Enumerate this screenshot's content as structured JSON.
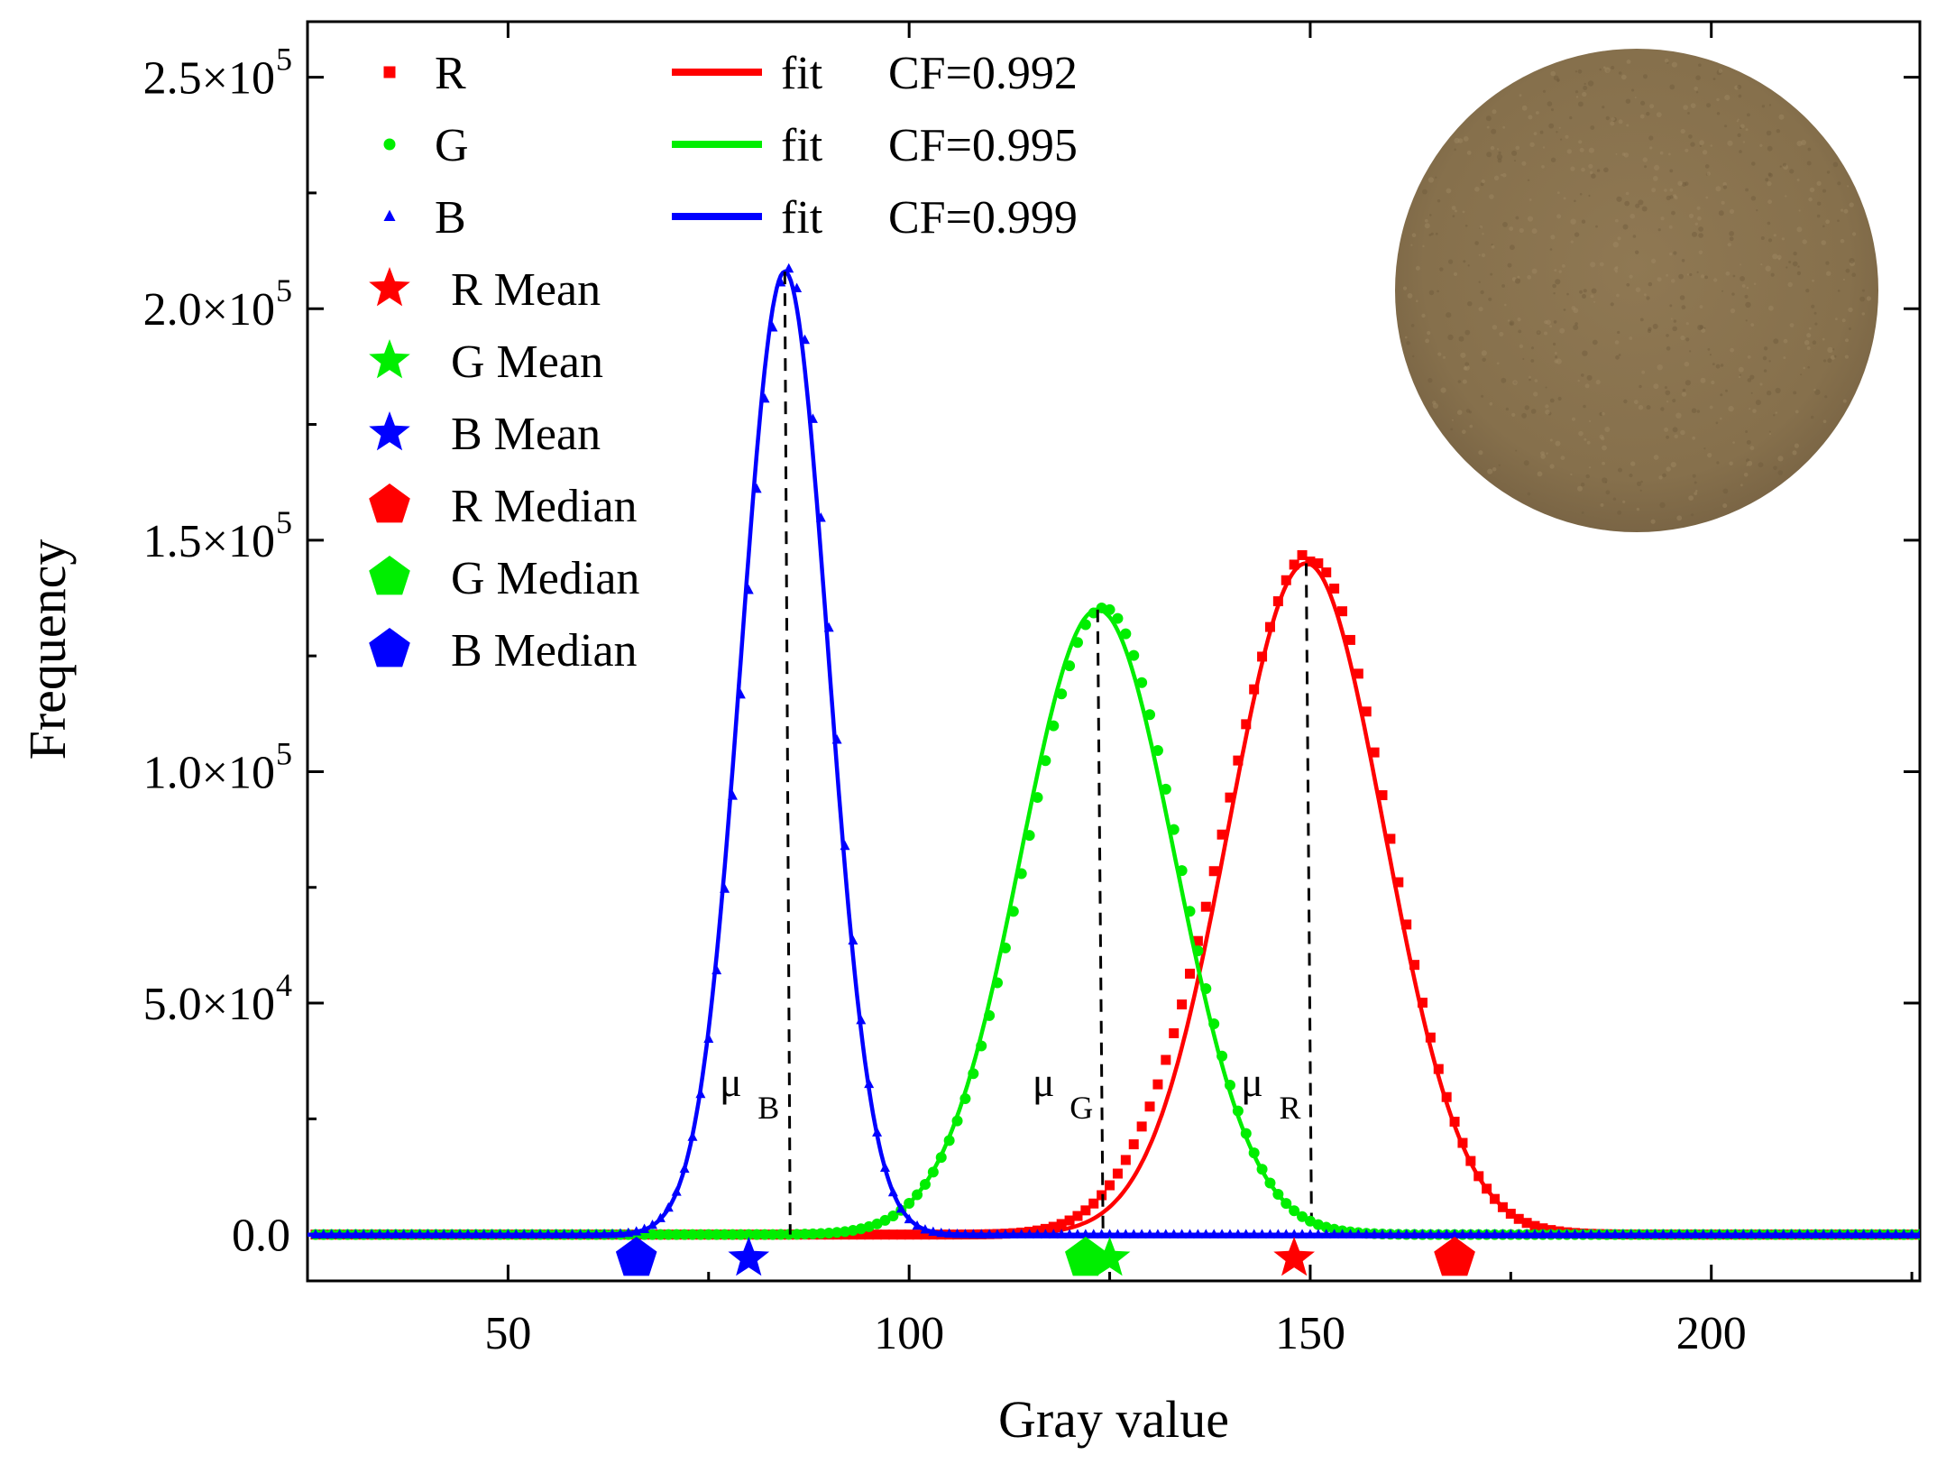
{
  "chart_data": {
    "type": "scatter",
    "xlabel": "Gray value",
    "ylabel": "Frequency",
    "xlim": [
      25,
      226
    ],
    "ylim": [
      -10000,
      262000
    ],
    "x_ticks": [
      50,
      100,
      150,
      200
    ],
    "x_tick_labels": [
      "50",
      "100",
      "150",
      "200"
    ],
    "y_ticks": [
      0,
      50000,
      100000,
      150000,
      200000,
      250000
    ],
    "y_tick_labels": [
      {
        "mantissa": "0.0",
        "exp": ""
      },
      {
        "mantissa": "5.0×10",
        "exp": "4"
      },
      {
        "mantissa": "1.0×10",
        "exp": "5"
      },
      {
        "mantissa": "1.5×10",
        "exp": "5"
      },
      {
        "mantissa": "2.0×10",
        "exp": "5"
      },
      {
        "mantissa": "2.5×10",
        "exp": "5"
      }
    ],
    "series": [
      {
        "name": "R",
        "color": "#ff0000",
        "marker": "square",
        "mean": 149.5,
        "sigma": 9.7,
        "peak": 145000,
        "fit_label": "fit",
        "cf": "CF=0.992",
        "mean_marker": 148,
        "median_marker": 168,
        "mu_label": "μ",
        "mu_sub": "R"
      },
      {
        "name": "G",
        "color": "#00ee00",
        "marker": "circle",
        "mean": 123.5,
        "sigma": 9.6,
        "peak": 135000,
        "fit_label": "fit",
        "cf": "CF=0.995",
        "mean_marker": 125,
        "median_marker": 122,
        "mu_label": "μ",
        "mu_sub": "G"
      },
      {
        "name": "B",
        "color": "#0000ff",
        "marker": "triangle",
        "mean": 84.5,
        "sigma": 5.4,
        "peak": 208000,
        "fit_label": "fit",
        "cf": "CF=0.999",
        "mean_marker": 80,
        "median_marker": 66,
        "mu_label": "μ",
        "mu_sub": "B"
      }
    ],
    "legend_stats": [
      "R Mean",
      "G Mean",
      "B Mean",
      "R Median",
      "G Median",
      "B Median"
    ],
    "legend_position": "top-left",
    "inset": "circular soil sample photo (top-right)",
    "inset_color": "#8a7350"
  }
}
